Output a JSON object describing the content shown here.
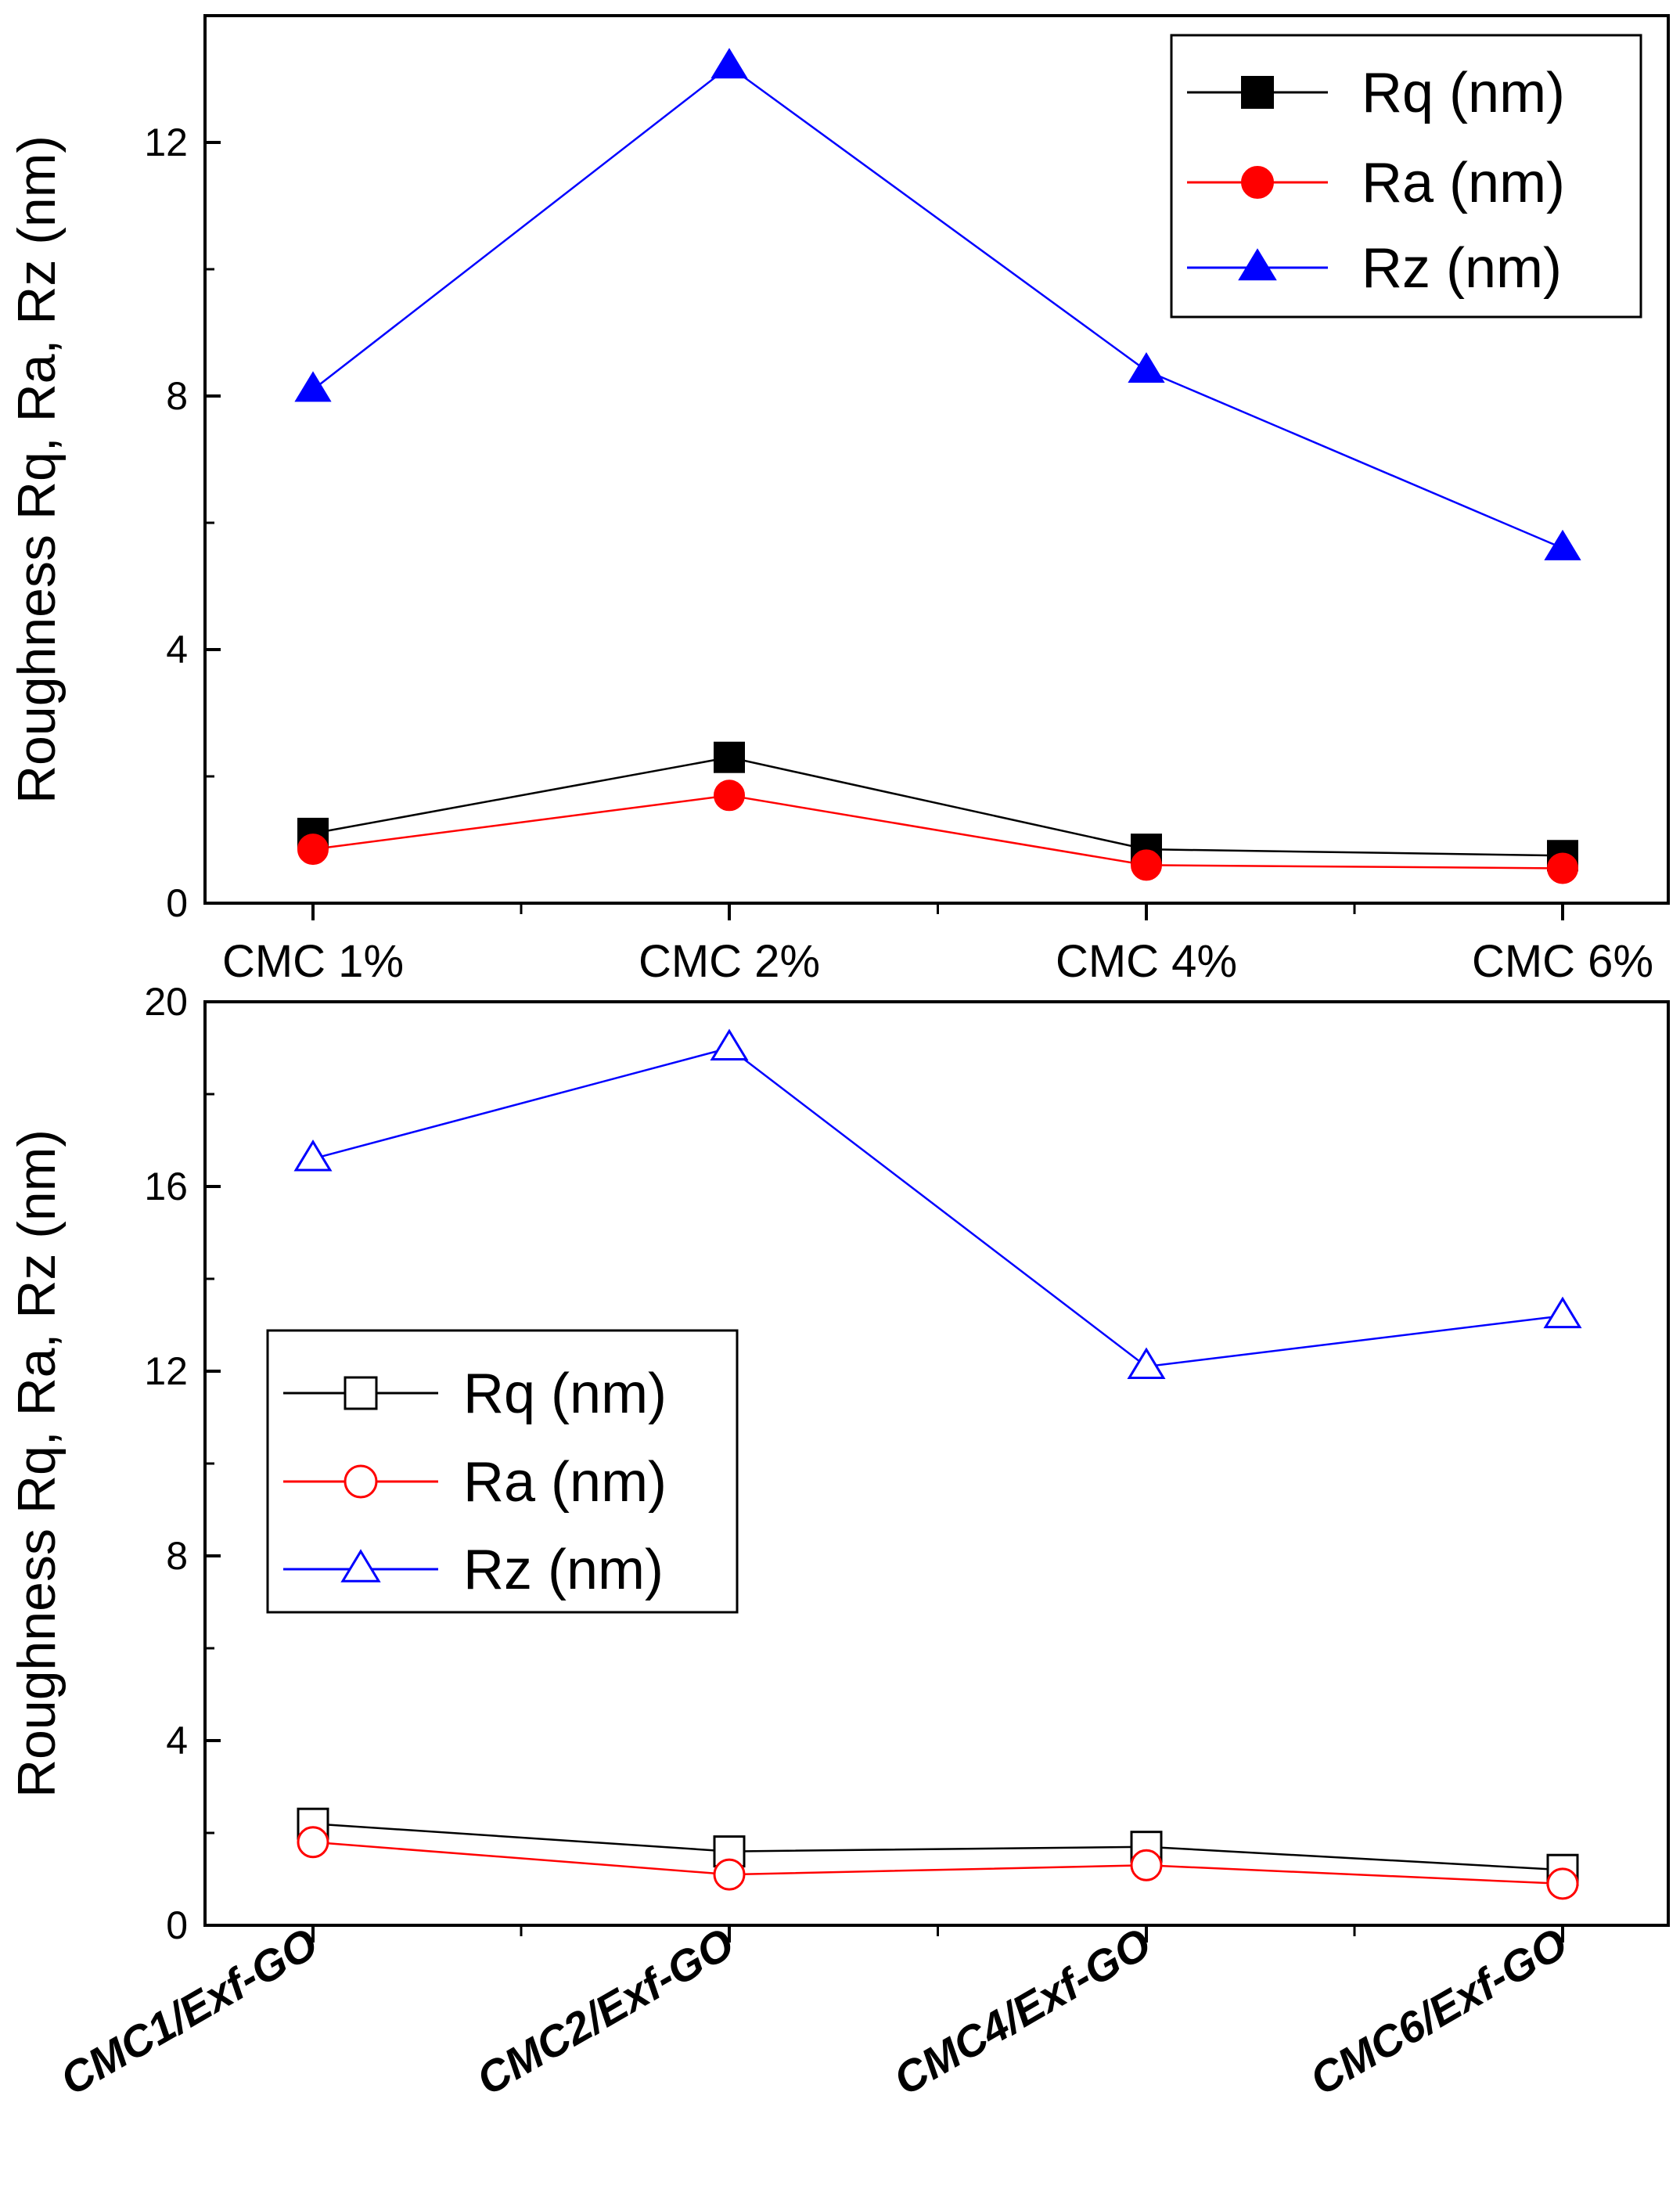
{
  "chart_data": [
    {
      "type": "line",
      "categories": [
        "CMC 1%",
        "CMC 2%",
        "CMC 4%",
        "CMC 6%"
      ],
      "ylabel": "Roughness Rq, Ra, Rz (nm)",
      "ylim": [
        0,
        14
      ],
      "yticks": [
        0,
        4,
        8,
        12
      ],
      "legend_position": "top-right",
      "marker_fill": "filled",
      "series": [
        {
          "name": "Rq (nm)",
          "marker": "square",
          "color": "#000000",
          "values": [
            1.1,
            2.3,
            0.85,
            0.75
          ]
        },
        {
          "name": "Ra (nm)",
          "marker": "circle",
          "color": "#ff0000",
          "values": [
            0.85,
            1.7,
            0.6,
            0.55
          ]
        },
        {
          "name": "Rz (nm)",
          "marker": "triangle",
          "color": "#0000ff",
          "values": [
            8.1,
            13.2,
            8.4,
            5.6
          ]
        }
      ]
    },
    {
      "type": "line",
      "categories": [
        "CMC1/Exf-GO",
        "CMC2/Exf-GO",
        "CMC4/Exf-GO",
        "CMC6/Exf-GO"
      ],
      "ylabel": "Roughness Rq, Ra, Rz (nm)",
      "ylim": [
        0,
        20
      ],
      "yticks": [
        0,
        4,
        8,
        12,
        16,
        20
      ],
      "legend_position": "center-left",
      "marker_fill": "hollow",
      "series": [
        {
          "name": "Rq (nm)",
          "marker": "square",
          "color": "#000000",
          "values": [
            2.2,
            1.6,
            1.7,
            1.2
          ]
        },
        {
          "name": "Ra (nm)",
          "marker": "circle",
          "color": "#ff0000",
          "values": [
            1.8,
            1.1,
            1.3,
            0.9
          ]
        },
        {
          "name": "Rz (nm)",
          "marker": "triangle",
          "color": "#0000ff",
          "values": [
            16.6,
            19.0,
            12.1,
            13.2
          ]
        }
      ]
    }
  ]
}
